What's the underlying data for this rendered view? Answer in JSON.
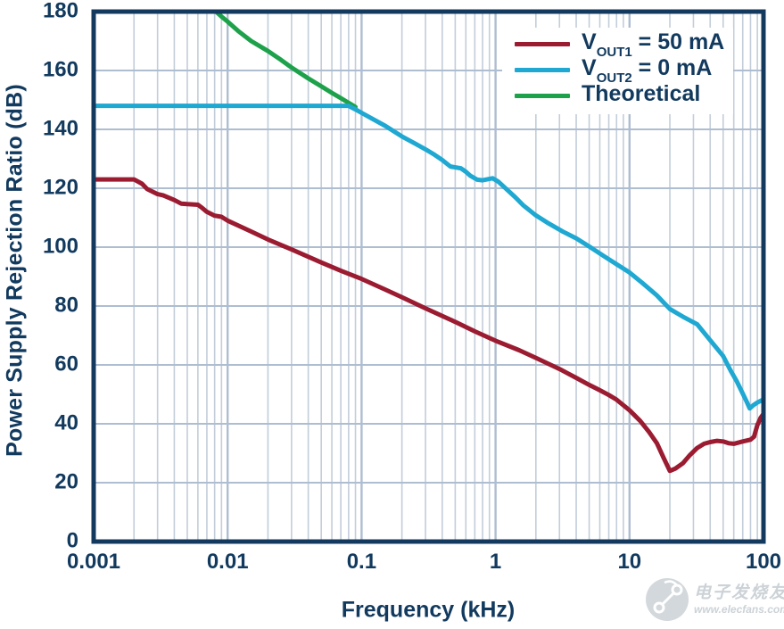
{
  "watermark": {
    "text": "电子发烧友",
    "url": "www.elecfans.com"
  },
  "chart_data": {
    "type": "line",
    "title": "",
    "xlabel": "Frequency (kHz)",
    "ylabel": "Power Supply Rejection Ratio (dB)",
    "x_scale": "log",
    "xlim": [
      0.001,
      100
    ],
    "ylim": [
      0,
      180
    ],
    "grid": "log minor + major, on",
    "legend_position": "top-right inside plot",
    "colors": {
      "axis_text": "#123a5e",
      "plot_border": "#14395e",
      "grid_major": "#aebdd0",
      "grid_minor": "#c3cdda"
    },
    "x_ticks": [
      {
        "value": 0.001,
        "label": "0.001"
      },
      {
        "value": 0.01,
        "label": "0.01"
      },
      {
        "value": 0.1,
        "label": "0.1"
      },
      {
        "value": 1,
        "label": "1"
      },
      {
        "value": 10,
        "label": "10"
      },
      {
        "value": 100,
        "label": "100"
      }
    ],
    "y_ticks": [
      {
        "value": 0,
        "label": "0"
      },
      {
        "value": 20,
        "label": "20"
      },
      {
        "value": 40,
        "label": "40"
      },
      {
        "value": 60,
        "label": "60"
      },
      {
        "value": 80,
        "label": "80"
      },
      {
        "value": 100,
        "label": "100"
      },
      {
        "value": 120,
        "label": "120"
      },
      {
        "value": 140,
        "label": "140"
      },
      {
        "value": 160,
        "label": "160"
      },
      {
        "value": 180,
        "label": "180"
      }
    ],
    "series": [
      {
        "name": "VOUT1 = 50 mA",
        "legend": {
          "pre": "V",
          "sub": "OUT1",
          "post": " = 50 mA"
        },
        "color": "#9b1b31",
        "points": [
          [
            0.001,
            123
          ],
          [
            0.002,
            123
          ],
          [
            0.0023,
            121.5
          ],
          [
            0.0025,
            119.8
          ],
          [
            0.003,
            118
          ],
          [
            0.0033,
            117.6
          ],
          [
            0.004,
            116
          ],
          [
            0.0045,
            114.8
          ],
          [
            0.005,
            114.6
          ],
          [
            0.006,
            114.4
          ],
          [
            0.0065,
            113.2
          ],
          [
            0.007,
            112
          ],
          [
            0.008,
            110.7
          ],
          [
            0.009,
            110.3
          ],
          [
            0.01,
            109
          ],
          [
            0.015,
            105.3
          ],
          [
            0.02,
            102.6
          ],
          [
            0.03,
            99.2
          ],
          [
            0.05,
            94.8
          ],
          [
            0.07,
            92
          ],
          [
            0.1,
            89.2
          ],
          [
            0.15,
            85.6
          ],
          [
            0.2,
            83
          ],
          [
            0.3,
            79.2
          ],
          [
            0.5,
            74.6
          ],
          [
            0.7,
            71.4
          ],
          [
            1,
            68.2
          ],
          [
            1.5,
            65
          ],
          [
            2,
            62.4
          ],
          [
            3,
            58.6
          ],
          [
            4,
            55.6
          ],
          [
            5,
            53.2
          ],
          [
            6,
            51.4
          ],
          [
            7,
            49.8
          ],
          [
            8,
            48.2
          ],
          [
            10,
            44.6
          ],
          [
            12,
            41
          ],
          [
            14,
            37.2
          ],
          [
            16,
            33.4
          ],
          [
            18,
            28.4
          ],
          [
            20,
            24
          ],
          [
            22,
            24.8
          ],
          [
            25,
            26.6
          ],
          [
            28,
            29.2
          ],
          [
            32,
            31.8
          ],
          [
            36,
            33.2
          ],
          [
            40,
            33.8
          ],
          [
            45,
            34.2
          ],
          [
            50,
            34
          ],
          [
            55,
            33.4
          ],
          [
            60,
            33.2
          ],
          [
            70,
            34
          ],
          [
            80,
            34.6
          ],
          [
            85,
            35.6
          ],
          [
            90,
            39.5
          ],
          [
            95,
            42
          ],
          [
            100,
            43.4
          ]
        ]
      },
      {
        "name": "VOUT2 = 0 mA",
        "legend": {
          "pre": "V",
          "sub": "OUT2",
          "post": " = 0 mA"
        },
        "color": "#1ea8d2",
        "points": [
          [
            0.001,
            148
          ],
          [
            0.08,
            148
          ],
          [
            0.09,
            146.8
          ],
          [
            0.1,
            145.6
          ],
          [
            0.12,
            143.6
          ],
          [
            0.15,
            141.2
          ],
          [
            0.2,
            137.6
          ],
          [
            0.25,
            135.2
          ],
          [
            0.3,
            133.2
          ],
          [
            0.35,
            131.4
          ],
          [
            0.4,
            129.6
          ],
          [
            0.46,
            127.4
          ],
          [
            0.55,
            126.8
          ],
          [
            0.6,
            125.6
          ],
          [
            0.65,
            124.2
          ],
          [
            0.73,
            122.9
          ],
          [
            0.8,
            122.7
          ],
          [
            0.95,
            123.4
          ],
          [
            1.05,
            122.2
          ],
          [
            1.2,
            119.8
          ],
          [
            1.4,
            117
          ],
          [
            1.6,
            114.3
          ],
          [
            2,
            110.8
          ],
          [
            2.5,
            108
          ],
          [
            3.2,
            105.2
          ],
          [
            4,
            103
          ],
          [
            5,
            100.2
          ],
          [
            6.3,
            97.2
          ],
          [
            8,
            94.2
          ],
          [
            10,
            91.4
          ],
          [
            12.5,
            87.8
          ],
          [
            16,
            83.6
          ],
          [
            20,
            79
          ],
          [
            25,
            76.4
          ],
          [
            32,
            73.8
          ],
          [
            40,
            68.4
          ],
          [
            50,
            63
          ],
          [
            57,
            58
          ],
          [
            63,
            54.5
          ],
          [
            70,
            50.3
          ],
          [
            75,
            47.5
          ],
          [
            79,
            45.2
          ],
          [
            84,
            46.3
          ],
          [
            90,
            47.2
          ],
          [
            100,
            48.3
          ]
        ]
      },
      {
        "name": "Theoretical",
        "legend": {
          "pre": "Theoretical",
          "sub": "",
          "post": ""
        },
        "color": "#1da24b",
        "points": [
          [
            0.0082,
            180
          ],
          [
            0.009,
            178.3
          ],
          [
            0.01,
            176.6
          ],
          [
            0.012,
            173.4
          ],
          [
            0.015,
            170
          ],
          [
            0.02,
            166.6
          ],
          [
            0.025,
            163.6
          ],
          [
            0.03,
            161
          ],
          [
            0.04,
            157.3
          ],
          [
            0.05,
            154.6
          ],
          [
            0.06,
            152.4
          ],
          [
            0.07,
            150.6
          ],
          [
            0.08,
            149
          ],
          [
            0.09,
            147.6
          ]
        ]
      }
    ]
  }
}
